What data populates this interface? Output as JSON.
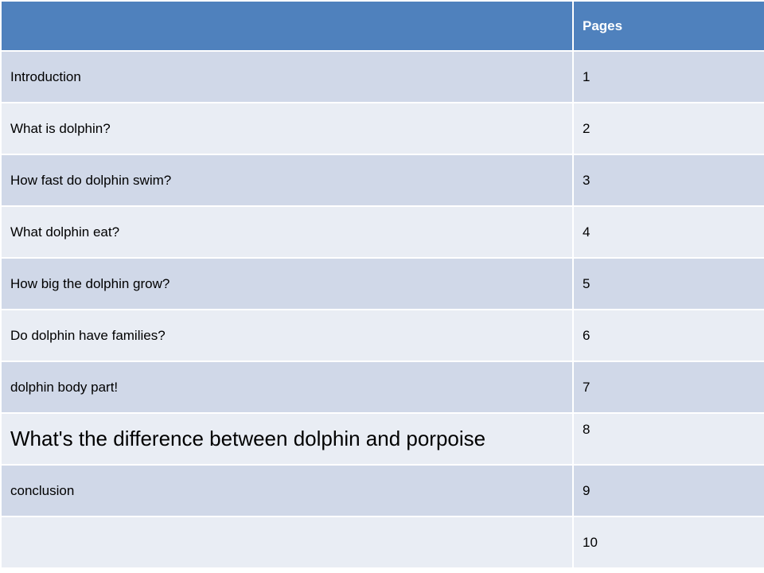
{
  "table": {
    "header": {
      "topic": "",
      "pages": "Pages"
    },
    "rows": [
      {
        "topic": "Introduction",
        "page": "1"
      },
      {
        "topic": "What is dolphin?",
        "page": "2"
      },
      {
        "topic": "How fast do dolphin swim?",
        "page": "3"
      },
      {
        "topic": "What dolphin eat?",
        "page": "4"
      },
      {
        "topic": "How big the dolphin grow?",
        "page": "5"
      },
      {
        "topic": "Do dolphin have families?",
        "page": "6"
      },
      {
        "topic": "dolphin body part!",
        "page": "7"
      },
      {
        "topic": "What's the difference between dolphin and porpoise",
        "page": "8"
      },
      {
        "topic": "conclusion",
        "page": "9"
      },
      {
        "topic": "",
        "page": "10"
      }
    ]
  },
  "colors": {
    "header_bg": "#4f81bd",
    "row_odd_bg": "#d0d8e8",
    "row_even_bg": "#e9edf4",
    "border": "#ffffff"
  }
}
